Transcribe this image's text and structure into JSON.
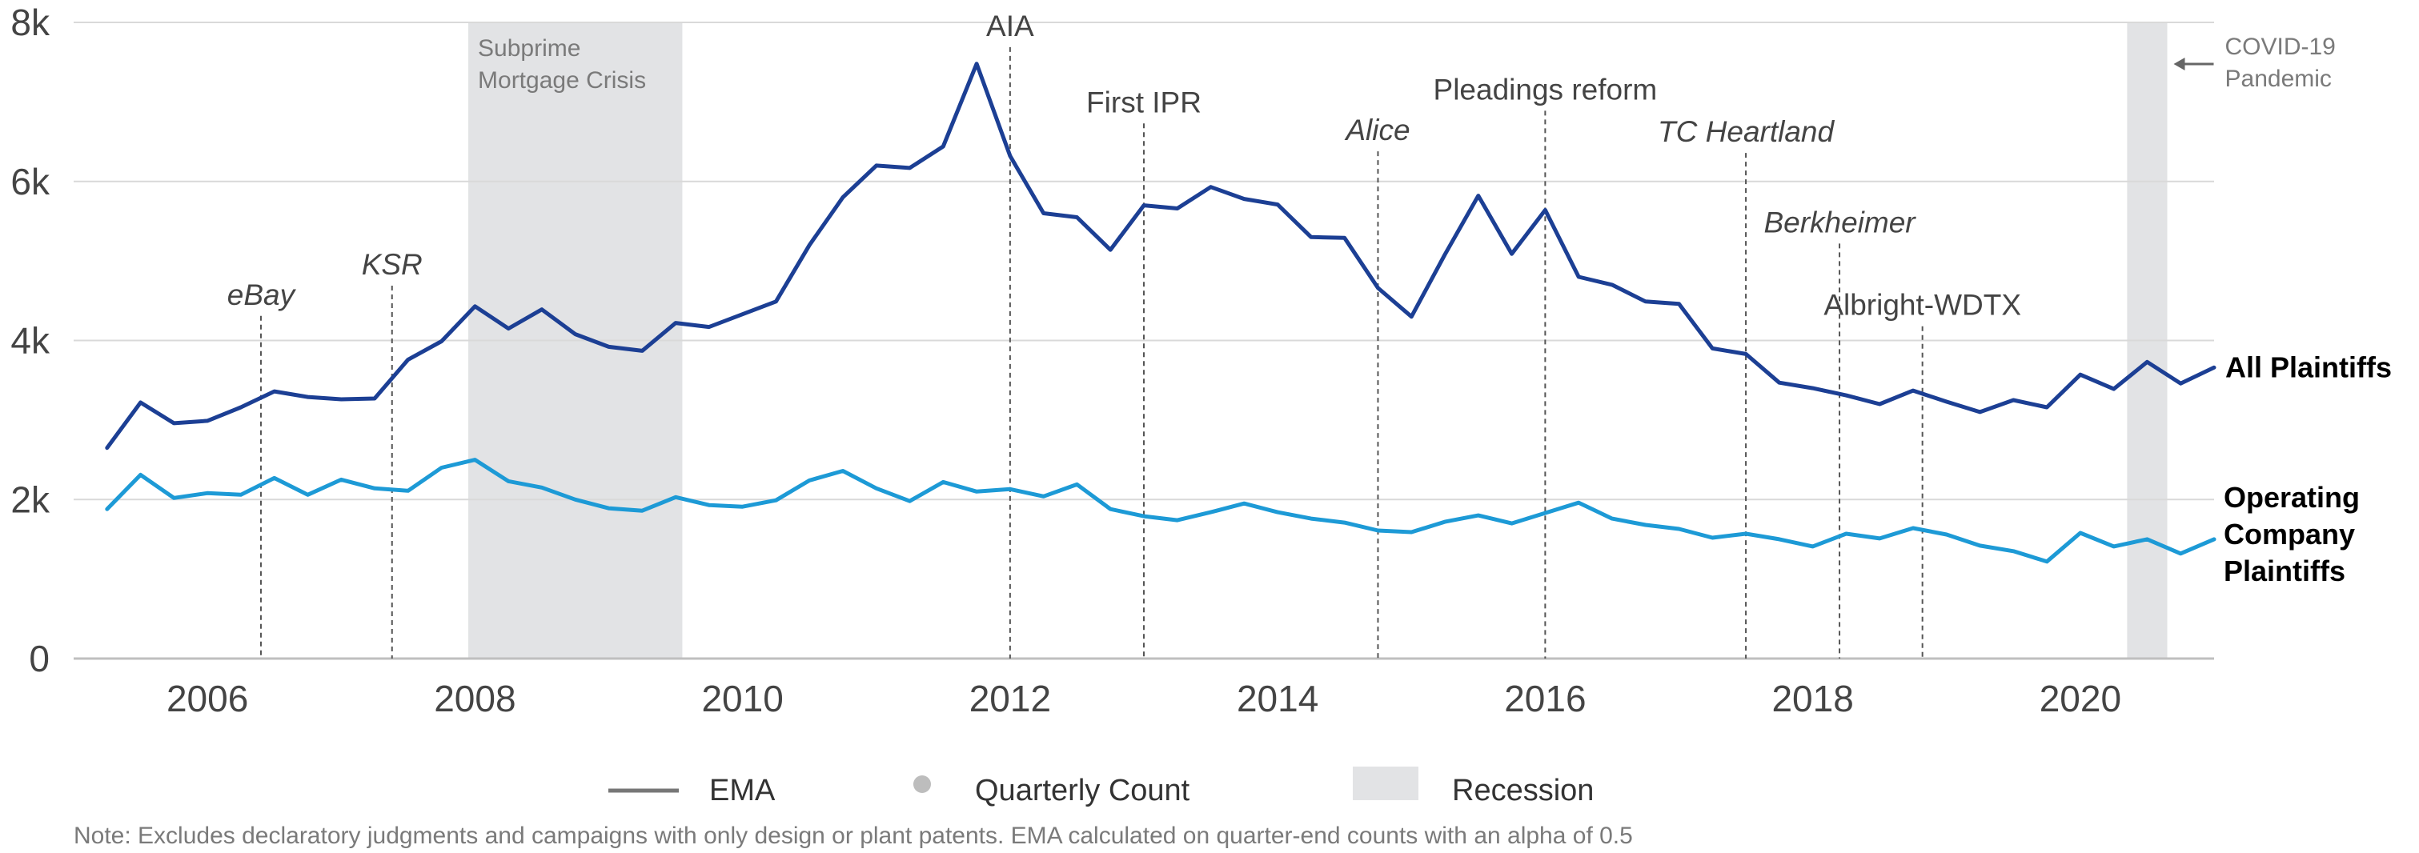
{
  "chart_data": {
    "type": "line",
    "title": "",
    "xlabel": "",
    "ylabel": "",
    "xlim": [
      2005.0,
      2021.0
    ],
    "ylim": [
      0,
      8000
    ],
    "x_ticks": [
      {
        "value": 2006,
        "label": "2006"
      },
      {
        "value": 2008,
        "label": "2008"
      },
      {
        "value": 2010,
        "label": "2010"
      },
      {
        "value": 2012,
        "label": "2012"
      },
      {
        "value": 2014,
        "label": "2014"
      },
      {
        "value": 2016,
        "label": "2016"
      },
      {
        "value": 2018,
        "label": "2018"
      },
      {
        "value": 2020,
        "label": "2020"
      }
    ],
    "y_ticks": [
      {
        "value": 0,
        "label": "0"
      },
      {
        "value": 2000,
        "label": "2k"
      },
      {
        "value": 4000,
        "label": "4k"
      },
      {
        "value": 6000,
        "label": "6k"
      },
      {
        "value": 8000,
        "label": "8k"
      }
    ],
    "grid": true,
    "series": [
      {
        "name": "All Plaintiffs",
        "color": "#1c3f94",
        "x": [
          2005.25,
          2005.5,
          2005.75,
          2006.0,
          2006.25,
          2006.5,
          2006.75,
          2007.0,
          2007.25,
          2007.5,
          2007.75,
          2008.0,
          2008.25,
          2008.5,
          2008.75,
          2009.0,
          2009.25,
          2009.5,
          2009.75,
          2010.0,
          2010.25,
          2010.5,
          2010.75,
          2011.0,
          2011.25,
          2011.5,
          2011.75,
          2012.0,
          2012.25,
          2012.5,
          2012.75,
          2013.0,
          2013.25,
          2013.5,
          2013.75,
          2014.0,
          2014.25,
          2014.5,
          2014.75,
          2015.0,
          2015.25,
          2015.5,
          2015.75,
          2016.0,
          2016.25,
          2016.5,
          2016.75,
          2017.0,
          2017.25,
          2017.5,
          2017.75,
          2018.0,
          2018.25,
          2018.5,
          2018.75,
          2019.0,
          2019.25,
          2019.5,
          2019.75,
          2020.0,
          2020.25,
          2020.5,
          2020.75,
          2021.0
        ],
        "values": [
          2650,
          3220,
          2960,
          2990,
          3160,
          3360,
          3290,
          3260,
          3270,
          3760,
          3990,
          4430,
          4150,
          4390,
          4080,
          3920,
          3870,
          4220,
          4170,
          4330,
          4490,
          5200,
          5800,
          6200,
          6170,
          6440,
          7480,
          6320,
          5600,
          5550,
          5140,
          5700,
          5660,
          5930,
          5780,
          5710,
          5300,
          5290,
          4660,
          4300,
          5080,
          5820,
          5090,
          5640,
          4800,
          4700,
          4490,
          4460,
          3900,
          3830,
          3470,
          3400,
          3310,
          3200,
          3370,
          3230,
          3100,
          3250,
          3160,
          3570,
          3390,
          3730,
          3460,
          3660
        ]
      },
      {
        "name": "Operating Company Plaintiffs",
        "color": "#1d9ad6",
        "x": [
          2005.25,
          2005.5,
          2005.75,
          2006.0,
          2006.25,
          2006.5,
          2006.75,
          2007.0,
          2007.25,
          2007.5,
          2007.75,
          2008.0,
          2008.25,
          2008.5,
          2008.75,
          2009.0,
          2009.25,
          2009.5,
          2009.75,
          2010.0,
          2010.25,
          2010.5,
          2010.75,
          2011.0,
          2011.25,
          2011.5,
          2011.75,
          2012.0,
          2012.25,
          2012.5,
          2012.75,
          2013.0,
          2013.25,
          2013.5,
          2013.75,
          2014.0,
          2014.25,
          2014.5,
          2014.75,
          2015.0,
          2015.25,
          2015.5,
          2015.75,
          2016.0,
          2016.25,
          2016.5,
          2016.75,
          2017.0,
          2017.25,
          2017.5,
          2017.75,
          2018.0,
          2018.25,
          2018.5,
          2018.75,
          2019.0,
          2019.25,
          2019.5,
          2019.75,
          2020.0,
          2020.25,
          2020.5,
          2020.75,
          2021.0
        ],
        "values": [
          1880,
          2310,
          2020,
          2080,
          2060,
          2270,
          2060,
          2250,
          2140,
          2110,
          2400,
          2500,
          2230,
          2150,
          2000,
          1890,
          1860,
          2030,
          1930,
          1910,
          1990,
          2240,
          2360,
          2140,
          1980,
          2220,
          2100,
          2130,
          2040,
          2190,
          1880,
          1790,
          1740,
          1840,
          1950,
          1840,
          1760,
          1710,
          1610,
          1590,
          1720,
          1800,
          1700,
          1830,
          1960,
          1760,
          1680,
          1630,
          1520,
          1570,
          1500,
          1410,
          1570,
          1510,
          1640,
          1560,
          1420,
          1350,
          1220,
          1580,
          1410,
          1500,
          1320,
          1500
        ]
      }
    ],
    "recessions": [
      {
        "x0": 2007.95,
        "x1": 2009.55,
        "label": [
          "Subprime",
          "Mortgage Crisis"
        ]
      },
      {
        "x0": 2020.35,
        "x1": 2020.65,
        "label": [
          "COVID-19",
          "Pandemic"
        ]
      }
    ],
    "events": [
      {
        "x": 2006.4,
        "label": "eBay",
        "italic": true,
        "label_y": 4450
      },
      {
        "x": 2007.38,
        "label": "KSR",
        "italic": true,
        "label_y": 4830
      },
      {
        "x": 2012.0,
        "label": "AIA",
        "italic": false,
        "label_y": 7830
      },
      {
        "x": 2013.0,
        "label": "First IPR",
        "italic": false,
        "label_y": 6870
      },
      {
        "x": 2014.75,
        "label": "Alice",
        "italic": true,
        "label_y": 6520
      },
      {
        "x": 2016.0,
        "label": "Pleadings reform",
        "italic": false,
        "label_y": 7030
      },
      {
        "x": 2017.5,
        "label": "TC Heartland",
        "italic": true,
        "label_y": 6500
      },
      {
        "x": 2018.2,
        "label": "Berkheimer",
        "italic": true,
        "label_y": 5360
      },
      {
        "x": 2018.82,
        "label": "Albright-WDTX",
        "italic": false,
        "label_y": 4320
      }
    ],
    "legend": {
      "position": "bottom",
      "items": [
        {
          "type": "line",
          "label": "EMA",
          "color": "#777777"
        },
        {
          "type": "dot",
          "label": "Quarterly Count",
          "color": "#bdbdbd"
        },
        {
          "type": "box",
          "label": "Recession",
          "color": "#e2e3e5"
        }
      ]
    },
    "note": "Note: Excludes declaratory judgments and campaigns with only design or plant patents. EMA calculated on quarter-end counts with an alpha of 0.5"
  }
}
